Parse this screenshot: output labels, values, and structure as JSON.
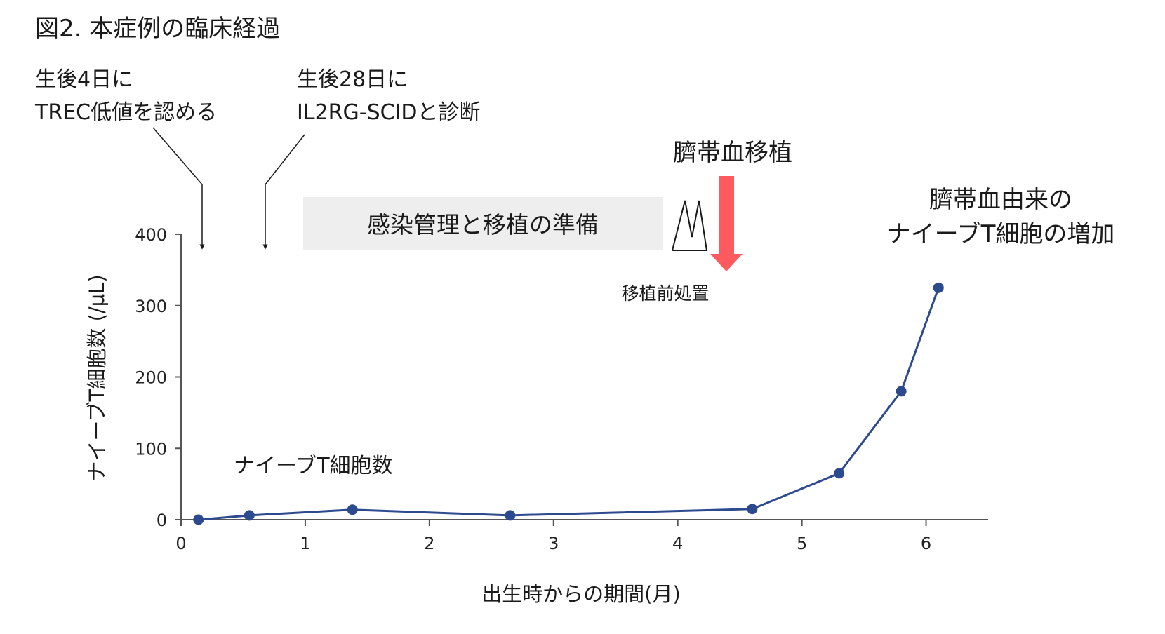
{
  "figure_title": "図2.  本症例の臨床経過",
  "annotations": {
    "trec_line1": "生後4日に",
    "trec_line2": "TREC低値を認める",
    "diag_line1": "生後28日に",
    "diag_line2": "IL2RG-SCIDと診断",
    "prep_box": "感染管理と移植の準備",
    "transplant": "臍帯血移植",
    "conditioning": "移植前処置",
    "result_line1": "臍帯血由来の",
    "result_line2": "ナイーブT細胞の増加",
    "series_label": "ナイーブT細胞数"
  },
  "colors": {
    "series": "#2e4a8f",
    "transplant_arrow": "#ff5a5f",
    "prep_box_bg": "#eeeeee",
    "axis": "#555555"
  },
  "chart_data": {
    "type": "line",
    "xlabel": "出生時からの期間(月)",
    "ylabel": "ナイーブT細胞数 (/μL)",
    "xlim": [
      0,
      6.5
    ],
    "ylim": [
      0,
      400
    ],
    "x_ticks": [
      0,
      1,
      2,
      3,
      4,
      5,
      6
    ],
    "y_ticks": [
      0,
      100,
      200,
      300,
      400
    ],
    "grid": false,
    "series": [
      {
        "name": "ナイーブT細胞数",
        "x": [
          0.14,
          0.55,
          1.38,
          2.65,
          4.6,
          5.3,
          5.8,
          6.1
        ],
        "y": [
          0,
          6,
          14,
          6,
          15,
          65,
          180,
          325
        ]
      }
    ],
    "events": [
      {
        "label": "生後4日に TREC低値を認める",
        "x": 0.17
      },
      {
        "label": "生後28日に IL2RG-SCIDと診断",
        "x": 0.7
      },
      {
        "label": "臍帯血移植",
        "x": 4.6
      }
    ]
  }
}
